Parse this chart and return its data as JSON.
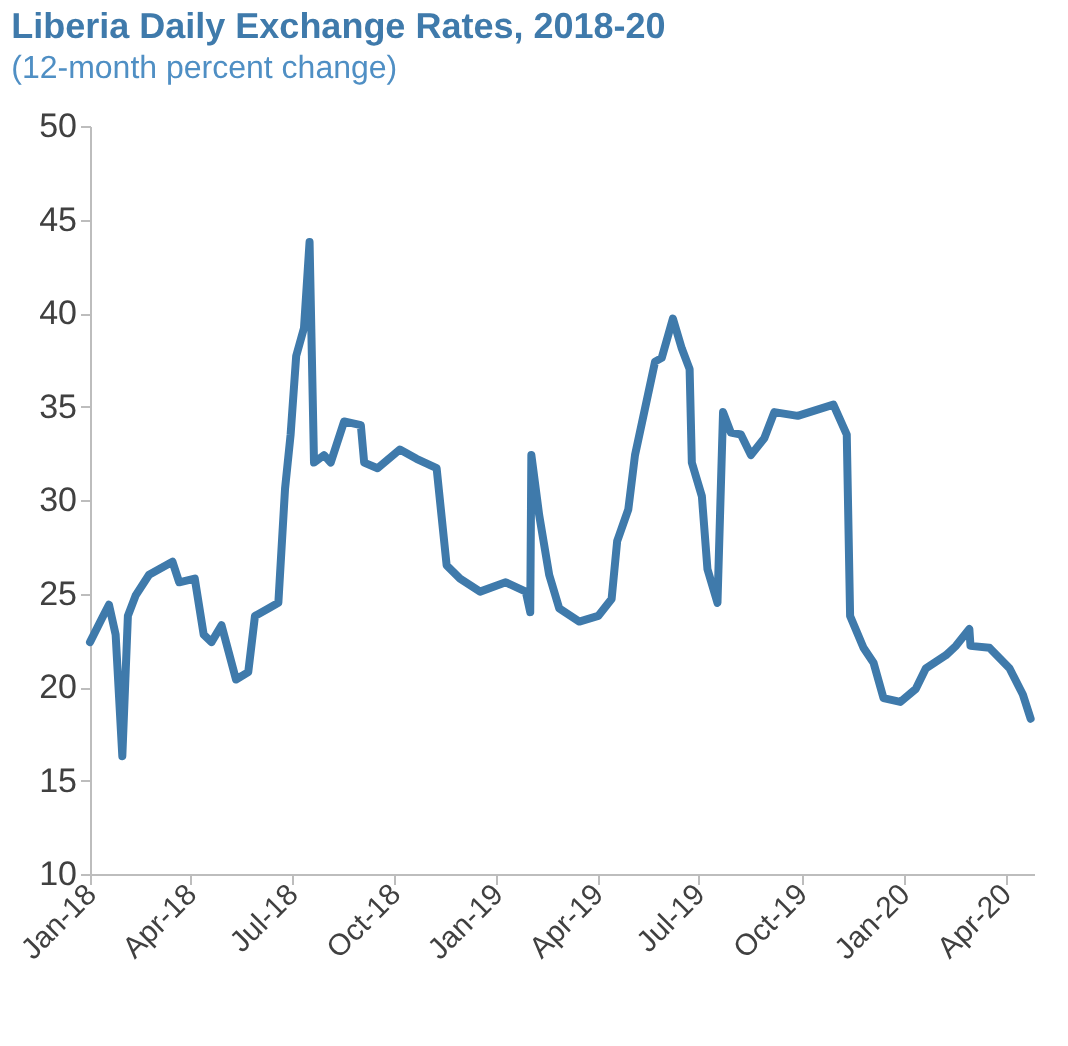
{
  "chart_data": {
    "type": "line",
    "title": "Liberia Daily Exchange Rates, 2018-20",
    "subtitle": "(12-month percent change)",
    "x": [
      "2018-01-01",
      "2018-01-12",
      "2018-01-18",
      "2018-01-24",
      "2018-01-30",
      "2018-02-04",
      "2018-02-11",
      "2018-02-23",
      "2018-03-16",
      "2018-03-22",
      "2018-04-05",
      "2018-04-13",
      "2018-04-20",
      "2018-04-29",
      "2018-05-12",
      "2018-05-23",
      "2018-05-29",
      "2018-06-10",
      "2018-06-19",
      "2018-06-25",
      "2018-06-30",
      "2018-07-05",
      "2018-07-12",
      "2018-07-17",
      "2018-07-21",
      "2018-07-30",
      "2018-08-05",
      "2018-08-17",
      "2018-09-01",
      "2018-09-04",
      "2018-09-16",
      "2018-10-06",
      "2018-10-21",
      "2018-11-08",
      "2018-11-17",
      "2018-11-29",
      "2018-12-17",
      "2019-01-09",
      "2019-01-27",
      "2019-01-31",
      "2019-02-01",
      "2019-02-08",
      "2019-02-17",
      "2019-02-26",
      "2019-03-16",
      "2019-04-02",
      "2019-04-14",
      "2019-04-19",
      "2019-04-29",
      "2019-05-05",
      "2019-05-14",
      "2019-05-23",
      "2019-05-29",
      "2019-06-08",
      "2019-06-16",
      "2019-06-23",
      "2019-06-25",
      "2019-07-04",
      "2019-07-09",
      "2019-07-18",
      "2019-07-23",
      "2019-07-30",
      "2019-08-08",
      "2019-08-17",
      "2019-08-29",
      "2019-09-07",
      "2019-09-28",
      "2019-10-30",
      "2019-11-11",
      "2019-11-14",
      "2019-11-26",
      "2019-12-05",
      "2019-12-14",
      "2019-12-29",
      "2020-01-12",
      "2020-01-21",
      "2020-02-08",
      "2020-02-17",
      "2020-02-29",
      "2020-03-01",
      "2020-03-18",
      "2020-04-05",
      "2020-04-17",
      "2020-04-24"
    ],
    "series": [
      {
        "color": "#3f7aab",
        "values": [
          22.4,
          23.7,
          24.4,
          22.8,
          16.3,
          23.8,
          24.9,
          26.0,
          26.7,
          25.6,
          25.8,
          22.8,
          22.4,
          23.3,
          20.4,
          20.8,
          23.8,
          24.2,
          24.5,
          30.6,
          33.5,
          37.7,
          39.2,
          43.8,
          32.0,
          32.4,
          32.0,
          34.2,
          34.0,
          32.0,
          31.7,
          32.7,
          32.2,
          31.7,
          26.5,
          25.8,
          25.1,
          25.6,
          25.1,
          24.0,
          32.4,
          29.2,
          26.0,
          24.2,
          23.5,
          23.8,
          24.7,
          27.8,
          29.5,
          32.4,
          34.9,
          37.4,
          37.6,
          39.7,
          38.1,
          37.0,
          32.0,
          30.2,
          26.3,
          24.5,
          34.7,
          33.6,
          33.5,
          32.4,
          33.3,
          34.7,
          34.5,
          35.1,
          33.5,
          23.8,
          22.1,
          21.3,
          19.4,
          19.2,
          19.9,
          21.0,
          21.7,
          22.2,
          23.1,
          22.2,
          22.1,
          21.0,
          19.6,
          18.3
        ]
      }
    ],
    "xlim": [
      "2018-01-01",
      "2020-04-27"
    ],
    "xticks": [
      {
        "value": "2018-01",
        "label": "Jan-18"
      },
      {
        "value": "2018-04",
        "label": "Apr-18"
      },
      {
        "value": "2018-07",
        "label": "Jul-18"
      },
      {
        "value": "2018-10",
        "label": "Oct-18"
      },
      {
        "value": "2019-01",
        "label": "Jan-19"
      },
      {
        "value": "2019-04",
        "label": "Apr-19"
      },
      {
        "value": "2019-07",
        "label": "Jul-19"
      },
      {
        "value": "2019-10",
        "label": "Oct-19"
      },
      {
        "value": "2020-01",
        "label": "Jan-20"
      },
      {
        "value": "2020-04",
        "label": "Apr-20"
      }
    ],
    "ylim": [
      10,
      50
    ],
    "yticks": [
      10,
      15,
      20,
      25,
      30,
      35,
      40,
      45,
      50
    ],
    "grid": false,
    "marker": "none",
    "line_style": "solid"
  }
}
